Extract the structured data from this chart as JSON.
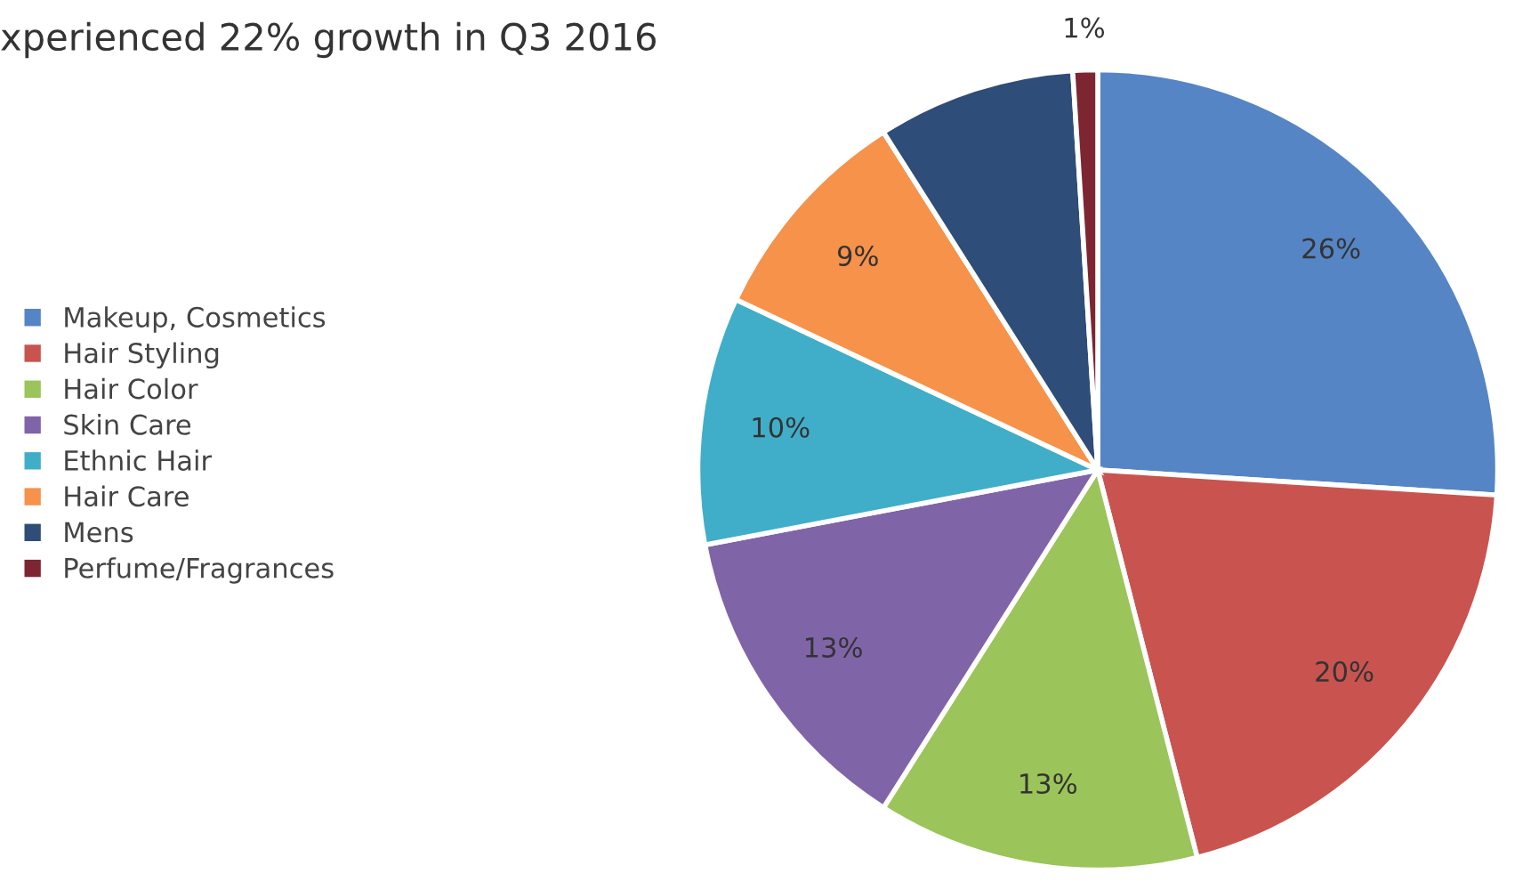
{
  "chart_data": {
    "type": "pie",
    "title": "xperienced 22% growth in Q3 2016",
    "categories": [
      "Makeup, Cosmetics",
      "Hair Styling",
      "Hair Color",
      "Skin Care",
      "Ethnic Hair",
      "Hair Care",
      "Mens",
      "Perfume/Fragrances"
    ],
    "values": [
      26,
      20,
      13,
      13,
      10,
      9,
      8,
      1
    ],
    "colors": [
      "#5585c5",
      "#c9534f",
      "#9bc45a",
      "#8064a8",
      "#40aec8",
      "#f6924a",
      "#2e4d78",
      "#7d2631"
    ],
    "value_labels": [
      "26%",
      "20%",
      "13%",
      "13%",
      "10%",
      "9%",
      null,
      "1%"
    ],
    "legend": "left"
  }
}
